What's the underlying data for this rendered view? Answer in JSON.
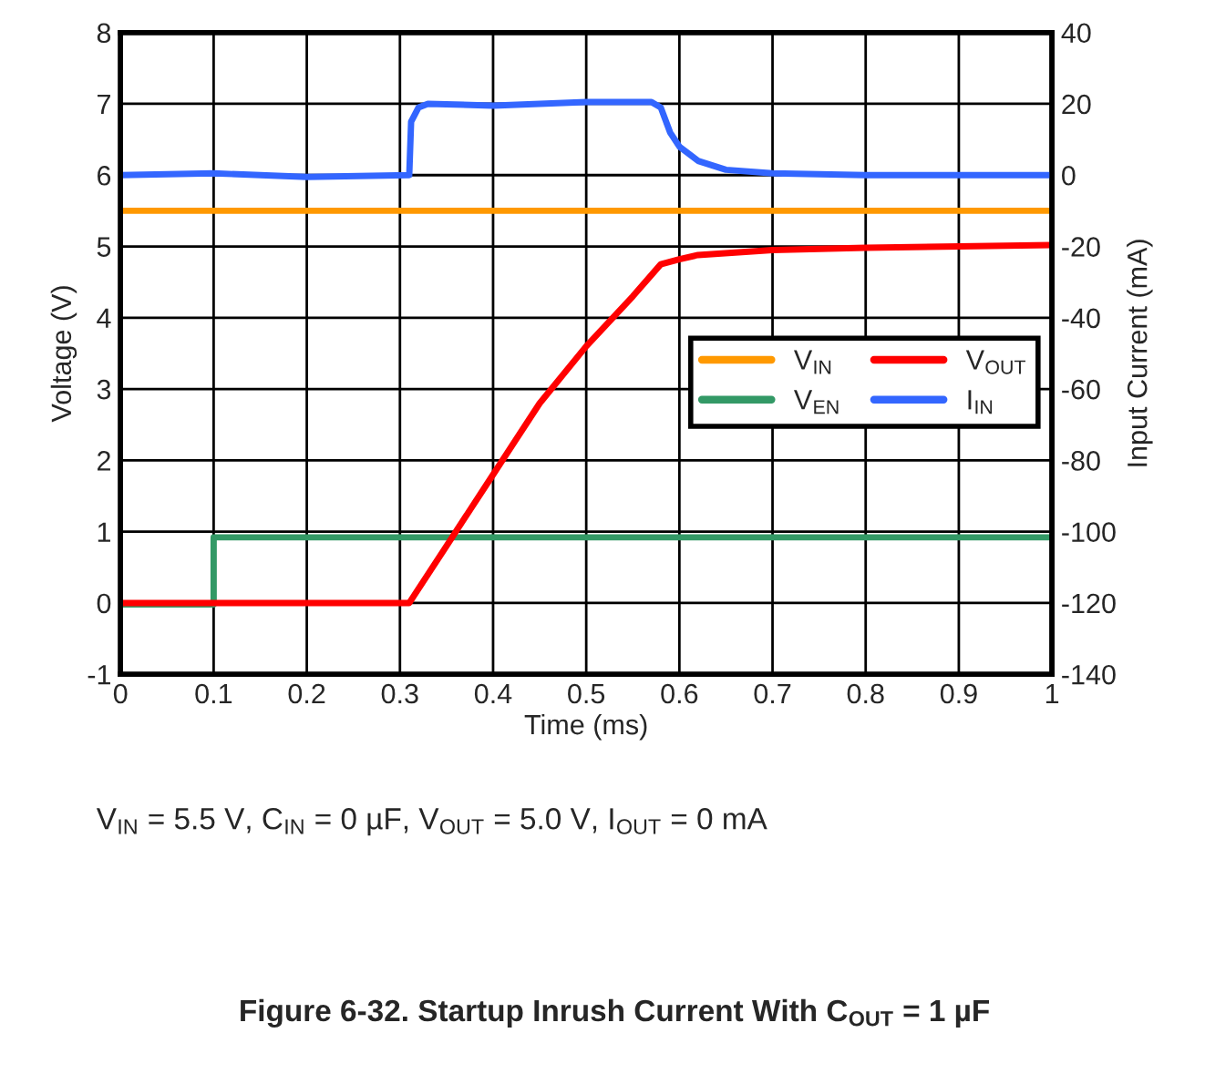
{
  "chart_data": {
    "type": "line",
    "title": "Figure 6-32. Startup Inrush Current With C$_{OUT}$ = 1 µF",
    "xlabel": "Time (ms)",
    "ylabel": "Voltage (V)",
    "y2label": "Input Current (mA)",
    "xlim": [
      0,
      1
    ],
    "xticks": [
      0,
      0.1,
      0.2,
      0.3,
      0.4,
      0.5,
      0.6,
      0.7,
      0.8,
      0.9,
      1
    ],
    "ylim": [
      -1,
      8
    ],
    "yticks": [
      -1,
      0,
      1,
      2,
      3,
      4,
      5,
      6,
      7,
      8
    ],
    "y2lim": [
      -140,
      40
    ],
    "y2ticks": [
      -140,
      -120,
      -100,
      -80,
      -60,
      -40,
      -20,
      0,
      20,
      40
    ],
    "grid": true,
    "legend": "right",
    "marker": "none",
    "line_style": "solid",
    "annotations": [
      "V$_{IN}$ = 5.5 V, C$_{IN}$ = 0 µF, V$_{OUT}$ = 5.0 V, I$_{OUT}$ = 0 mA"
    ],
    "series": [
      {
        "name": "V$_{IN}$",
        "color": "#ff9900",
        "x": [
          0,
          1
        ],
        "values": [
          5.5,
          5.5
        ]
      },
      {
        "name": "V$_{EN}$",
        "color": "#339966",
        "x": [
          0,
          0.1,
          0.1,
          1
        ],
        "values": [
          -0.02,
          -0.02,
          0.92,
          0.92
        ]
      },
      {
        "name": "V$_{OUT}$",
        "color": "#ff0000",
        "x": [
          0,
          0.31,
          0.35,
          0.4,
          0.45,
          0.5,
          0.55,
          0.58,
          0.6,
          0.62,
          0.7,
          0.8,
          0.9,
          1
        ],
        "values": [
          0,
          0,
          0.8,
          1.8,
          2.8,
          3.6,
          4.3,
          4.75,
          4.82,
          4.88,
          4.95,
          4.98,
          5.0,
          5.02
        ]
      },
      {
        "name": "I$_{IN}$",
        "color": "#3366ff",
        "axis": "y2",
        "x": [
          0,
          0.1,
          0.2,
          0.31,
          0.312,
          0.32,
          0.33,
          0.4,
          0.5,
          0.57,
          0.58,
          0.59,
          0.6,
          0.62,
          0.65,
          0.7,
          0.8,
          1
        ],
        "values": [
          0,
          0.5,
          -0.5,
          0,
          15,
          19,
          20,
          19.5,
          20.5,
          20.5,
          19,
          12,
          8,
          4,
          1.5,
          0.5,
          0,
          0
        ]
      }
    ]
  }
}
